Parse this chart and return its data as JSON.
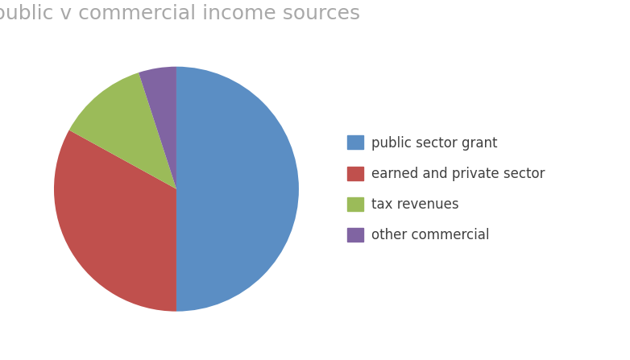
{
  "title": "public v commercial income sources",
  "title_color": "#a8a8a8",
  "title_fontsize": 18,
  "slices": [
    50,
    33,
    12,
    5
  ],
  "labels": [
    "public sector grant",
    "earned and private sector",
    "tax revenues",
    "other commercial"
  ],
  "colors": [
    "#5b8ec4",
    "#c0504d",
    "#9bbb59",
    "#8064a2"
  ],
  "startangle": 90,
  "counterclock": false,
  "legend_fontsize": 12,
  "legend_text_color": "#404040"
}
